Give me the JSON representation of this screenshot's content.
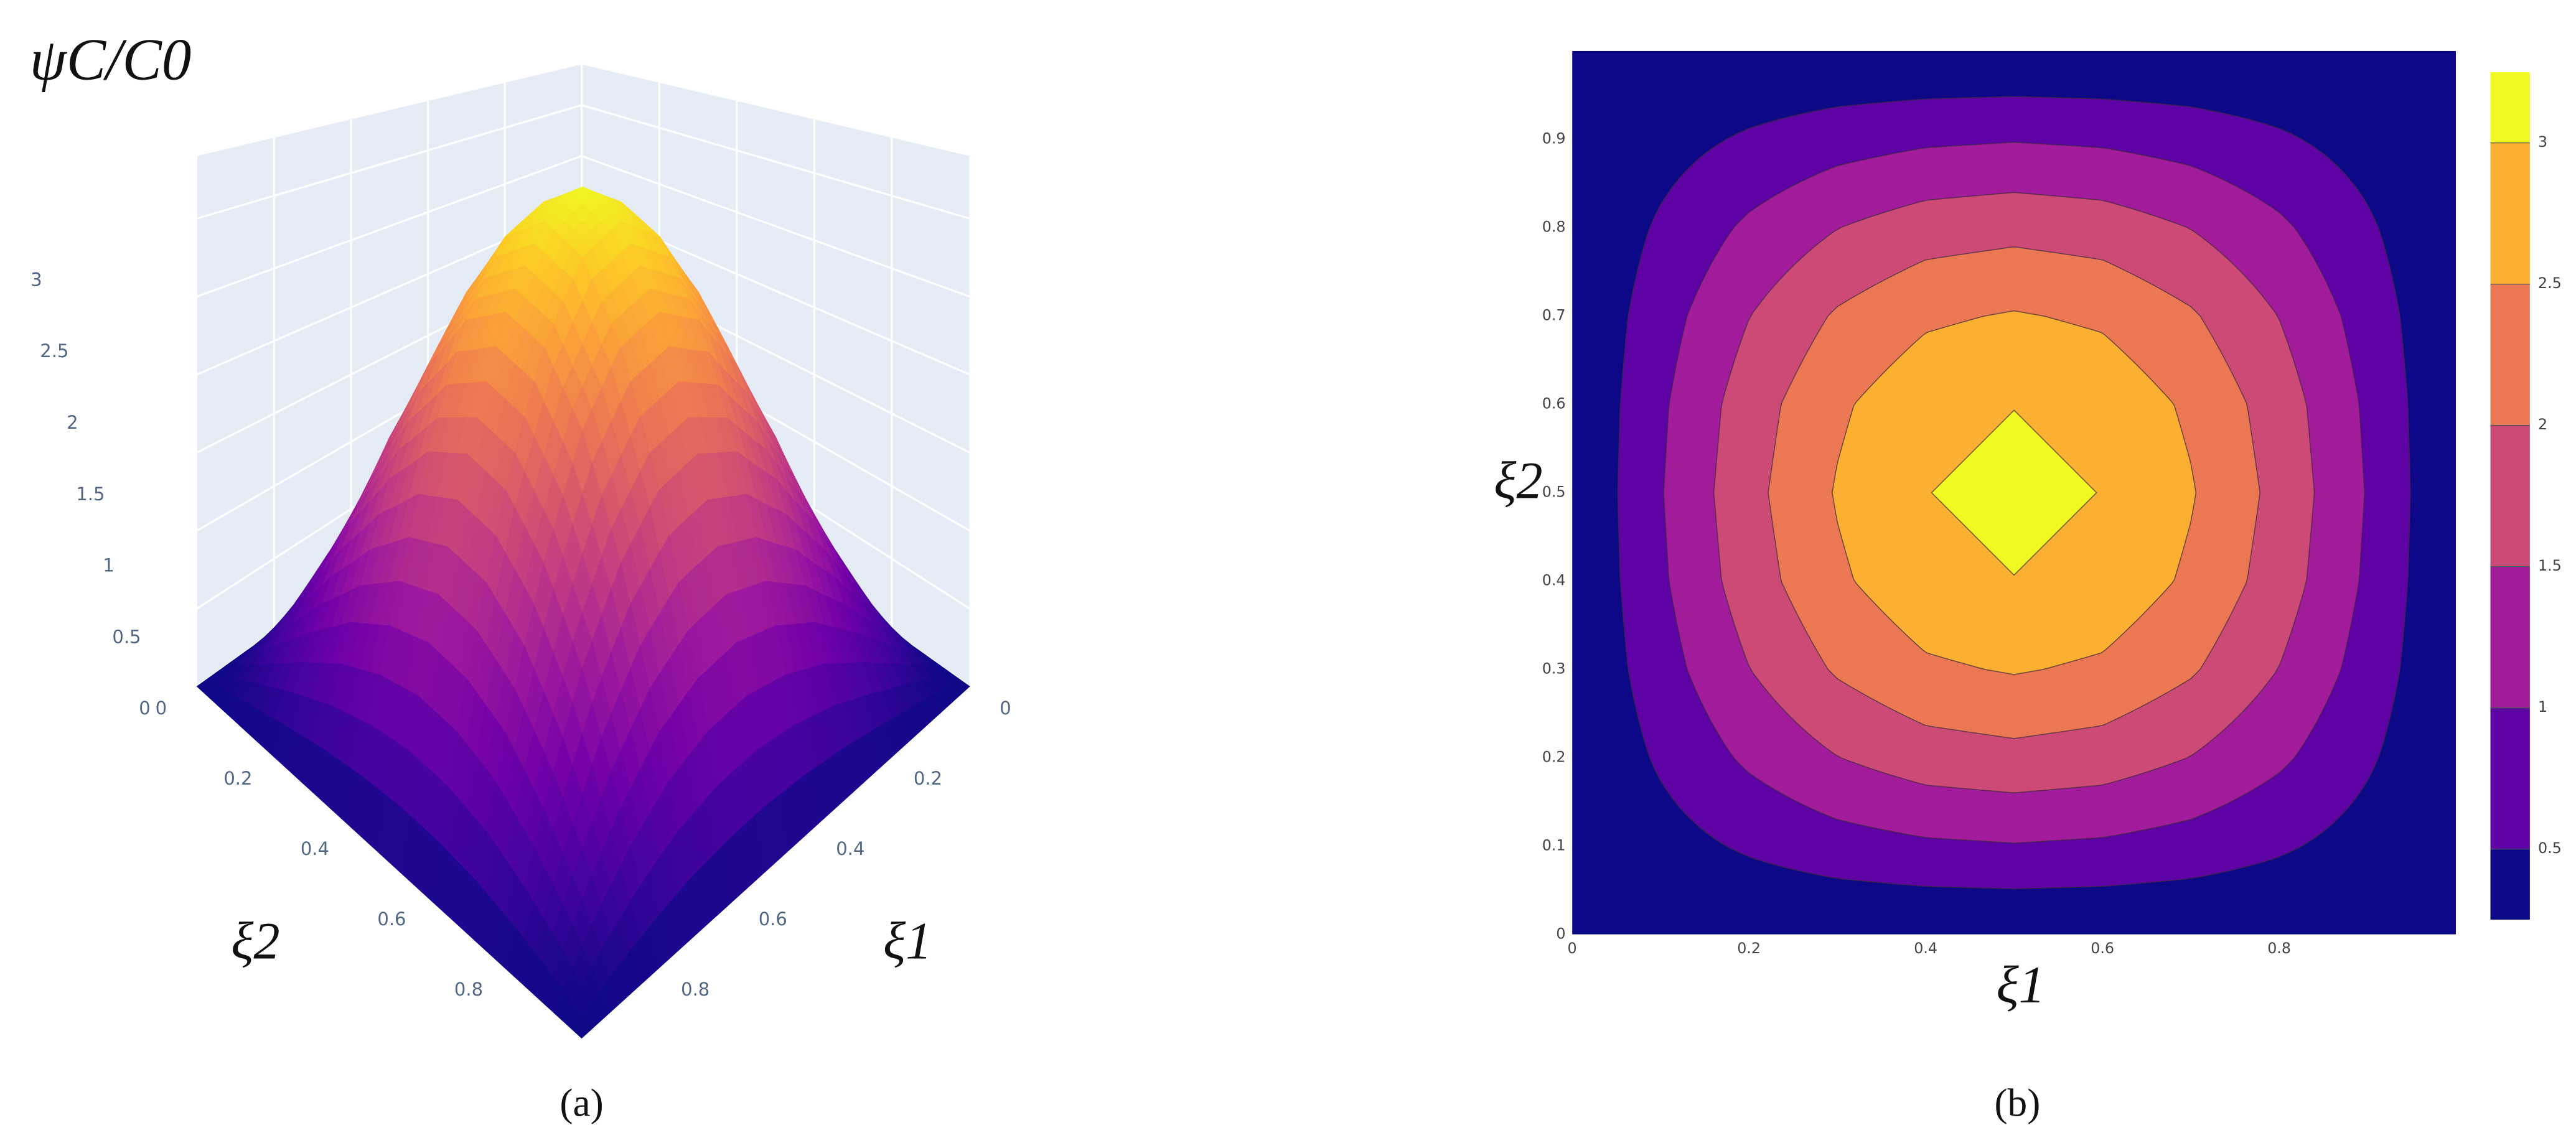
{
  "chart_data": [
    {
      "type": "surface",
      "title": "ψC/C0",
      "label": "(a)",
      "xlabel": "ξ1",
      "ylabel": "ξ2",
      "x": [
        0,
        0.1,
        0.2,
        0.3,
        0.4,
        0.5,
        0.6,
        0.7,
        0.8,
        0.9,
        1
      ],
      "y": [
        0,
        0.1,
        0.2,
        0.3,
        0.4,
        0.5,
        0.6,
        0.7,
        0.8,
        0.9,
        1
      ],
      "z": [
        [
          0,
          0,
          0,
          0,
          0,
          0,
          0,
          0,
          0,
          0,
          0
        ],
        [
          0,
          0.3,
          0.57,
          0.79,
          0.92,
          0.97,
          0.92,
          0.79,
          0.57,
          0.3,
          0
        ],
        [
          0,
          0.57,
          1.09,
          1.49,
          1.76,
          1.85,
          1.76,
          1.49,
          1.09,
          0.57,
          0
        ],
        [
          0,
          0.79,
          1.49,
          2.06,
          2.42,
          2.54,
          2.42,
          2.06,
          1.49,
          0.79,
          0
        ],
        [
          0,
          0.92,
          1.76,
          2.42,
          2.84,
          2.99,
          2.84,
          2.42,
          1.76,
          0.92,
          0
        ],
        [
          0,
          0.97,
          1.85,
          2.54,
          2.99,
          3.14,
          2.99,
          2.54,
          1.85,
          0.97,
          0
        ],
        [
          0,
          0.92,
          1.76,
          2.42,
          2.84,
          2.99,
          2.84,
          2.42,
          1.76,
          0.92,
          0
        ],
        [
          0,
          0.79,
          1.49,
          2.06,
          2.42,
          2.54,
          2.42,
          2.06,
          1.49,
          0.79,
          0
        ],
        [
          0,
          0.57,
          1.09,
          1.49,
          1.76,
          1.85,
          1.76,
          1.49,
          1.09,
          0.57,
          0
        ],
        [
          0,
          0.3,
          0.57,
          0.79,
          0.92,
          0.97,
          0.92,
          0.79,
          0.57,
          0.3,
          0
        ],
        [
          0,
          0,
          0,
          0,
          0,
          0,
          0,
          0,
          0,
          0,
          0
        ]
      ],
      "xlim": [
        0,
        1
      ],
      "ylim": [
        0,
        1
      ],
      "zlim": [
        0,
        3.4
      ],
      "xticks": [
        0,
        0.2,
        0.4,
        0.6,
        0.8
      ],
      "yticks": [
        0,
        0.2,
        0.4,
        0.6,
        0.8
      ],
      "zticks": [
        0,
        0.5,
        1,
        1.5,
        2,
        2.5,
        3
      ],
      "colorscale": [
        "#0d0887",
        "#46039f",
        "#7201a8",
        "#9c179e",
        "#bd3786",
        "#d8576b",
        "#ed7953",
        "#fb9f3a",
        "#fdca26",
        "#f0f921"
      ]
    },
    {
      "type": "contour",
      "label": "(b)",
      "xlabel": "ξ1",
      "ylabel": "ξ2",
      "x": [
        0,
        0.1,
        0.2,
        0.3,
        0.4,
        0.5,
        0.6,
        0.7,
        0.8,
        0.9,
        1
      ],
      "y": [
        0,
        0.1,
        0.2,
        0.3,
        0.4,
        0.5,
        0.6,
        0.7,
        0.8,
        0.9,
        1
      ],
      "z": [
        [
          0,
          0,
          0,
          0,
          0,
          0,
          0,
          0,
          0,
          0,
          0
        ],
        [
          0,
          0.3,
          0.57,
          0.79,
          0.92,
          0.97,
          0.92,
          0.79,
          0.57,
          0.3,
          0
        ],
        [
          0,
          0.57,
          1.09,
          1.49,
          1.76,
          1.85,
          1.76,
          1.49,
          1.09,
          0.57,
          0
        ],
        [
          0,
          0.79,
          1.49,
          2.06,
          2.42,
          2.54,
          2.42,
          2.06,
          1.49,
          0.79,
          0
        ],
        [
          0,
          0.92,
          1.76,
          2.42,
          2.84,
          2.99,
          2.84,
          2.42,
          1.76,
          0.92,
          0
        ],
        [
          0,
          0.97,
          1.85,
          2.54,
          2.99,
          3.14,
          2.99,
          2.54,
          1.85,
          0.97,
          0
        ],
        [
          0,
          0.92,
          1.76,
          2.42,
          2.84,
          2.99,
          2.84,
          2.42,
          1.76,
          0.92,
          0
        ],
        [
          0,
          0.79,
          1.49,
          2.06,
          2.42,
          2.54,
          2.42,
          2.06,
          1.49,
          0.79,
          0
        ],
        [
          0,
          0.57,
          1.09,
          1.49,
          1.76,
          1.85,
          1.76,
          1.49,
          1.09,
          0.57,
          0
        ],
        [
          0,
          0.3,
          0.57,
          0.79,
          0.92,
          0.97,
          0.92,
          0.79,
          0.57,
          0.3,
          0
        ],
        [
          0,
          0,
          0,
          0,
          0,
          0,
          0,
          0,
          0,
          0,
          0
        ]
      ],
      "xlim": [
        0,
        1
      ],
      "ylim": [
        0,
        1
      ],
      "xticks": [
        0,
        0.2,
        0.4,
        0.6,
        0.8
      ],
      "yticks": [
        0,
        0.1,
        0.2,
        0.3,
        0.4,
        0.5,
        0.6,
        0.7,
        0.8,
        0.9
      ],
      "levels": [
        0.5,
        1,
        1.5,
        2,
        2.5,
        3
      ],
      "zlim": [
        0.25,
        3.25
      ],
      "colors": [
        "#0d0887",
        "#5e01a5",
        "#a11b9b",
        "#cd4a76",
        "#ec7853",
        "#fbb032",
        "#f0f921"
      ]
    }
  ]
}
